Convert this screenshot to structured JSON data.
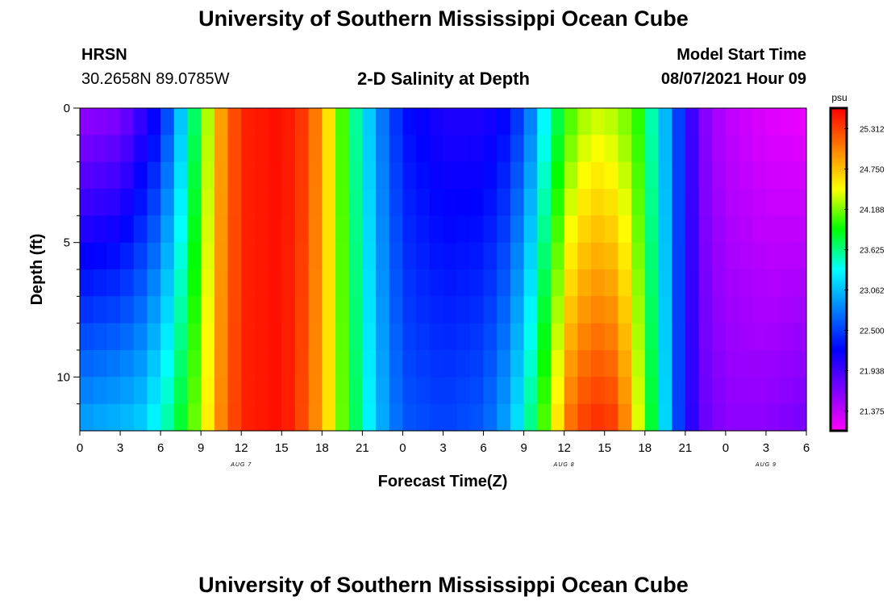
{
  "header": {
    "title": "University of Southern Mississippi Ocean Cube",
    "station": "HRSN",
    "coords": "30.2658N  89.0785W",
    "plot_title": "2-D Salinity at Depth",
    "start_label": "Model Start Time",
    "start_value": "08/07/2021 Hour 09"
  },
  "footer": {
    "title": "University of Southern Mississippi Ocean Cube"
  },
  "colors": {
    "colormap": [
      "#ff00ff",
      "#8000ff",
      "#0000ff",
      "#0080ff",
      "#00ffff",
      "#00ff00",
      "#ffff00",
      "#ff8000",
      "#ff0000"
    ]
  },
  "chart_data": {
    "type": "heatmap",
    "title": "2-D Salinity at Depth",
    "xlabel": "Forecast Time(Z)",
    "ylabel": "Depth (ft)",
    "x_hours_since_start": [
      0,
      3,
      6,
      9,
      12,
      15,
      18,
      21,
      24,
      27,
      30,
      33,
      36,
      39,
      42,
      45,
      48,
      51,
      54
    ],
    "x_tick_labels": [
      "0",
      "3",
      "6",
      "9",
      "12",
      "15",
      "18",
      "21",
      "0",
      "3",
      "6",
      "9",
      "12",
      "15",
      "18",
      "21",
      "0",
      "3",
      "6"
    ],
    "xlim_hours": [
      0,
      54
    ],
    "date_labels": [
      {
        "label": "AUG 7",
        "hour": 12
      },
      {
        "label": "AUG 8",
        "hour": 36
      },
      {
        "label": "AUG 9",
        "hour": 51
      }
    ],
    "ylim_ft": [
      0,
      12
    ],
    "y_ticks": [
      0,
      5,
      10
    ],
    "y_minor_ticks": [
      1,
      2,
      3,
      4,
      6,
      7,
      8,
      9,
      11
    ],
    "depth_levels_ft": [
      0.5,
      1.5,
      2.5,
      3.5,
      4.5,
      5.5,
      6.5,
      7.5,
      8.5,
      9.5,
      10.5,
      11.5
    ],
    "colorbar": {
      "unit": "psu",
      "range": [
        21.1,
        25.6
      ],
      "tick_labels": [
        "25.312",
        "24.750",
        "24.188",
        "23.625",
        "23.062",
        "22.500",
        "21.938",
        "21.375"
      ]
    },
    "profile_anchors": [
      {
        "hour": 0,
        "surface": 21.6,
        "bottom": 22.9
      },
      {
        "hour": 3,
        "surface": 21.7,
        "bottom": 23.0
      },
      {
        "hour": 4.5,
        "surface": 22.0,
        "bottom": 23.1
      },
      {
        "hour": 6,
        "surface": 22.3,
        "bottom": 23.4
      },
      {
        "hour": 7.5,
        "surface": 23.1,
        "bottom": 23.8
      },
      {
        "hour": 9,
        "surface": 24.0,
        "bottom": 24.3
      },
      {
        "hour": 10.5,
        "surface": 24.9,
        "bottom": 25.0
      },
      {
        "hour": 12,
        "surface": 25.45,
        "bottom": 25.45
      },
      {
        "hour": 15,
        "surface": 25.55,
        "bottom": 25.55
      },
      {
        "hour": 17,
        "surface": 25.3,
        "bottom": 25.2
      },
      {
        "hour": 18.5,
        "surface": 24.6,
        "bottom": 24.6
      },
      {
        "hour": 20,
        "surface": 23.8,
        "bottom": 23.9
      },
      {
        "hour": 22,
        "surface": 22.9,
        "bottom": 23.1
      },
      {
        "hour": 24,
        "surface": 22.3,
        "bottom": 22.6
      },
      {
        "hour": 27,
        "surface": 22.1,
        "bottom": 22.5
      },
      {
        "hour": 30,
        "surface": 22.1,
        "bottom": 22.6
      },
      {
        "hour": 32,
        "surface": 22.3,
        "bottom": 23.0
      },
      {
        "hour": 33.5,
        "surface": 22.8,
        "bottom": 23.6
      },
      {
        "hour": 35,
        "surface": 23.6,
        "bottom": 24.3
      },
      {
        "hour": 36.5,
        "surface": 24.1,
        "bottom": 25.1
      },
      {
        "hour": 38,
        "surface": 24.4,
        "bottom": 25.4
      },
      {
        "hour": 40,
        "surface": 24.3,
        "bottom": 25.3
      },
      {
        "hour": 41.5,
        "surface": 24.0,
        "bottom": 24.4
      },
      {
        "hour": 43,
        "surface": 23.3,
        "bottom": 23.5
      },
      {
        "hour": 44.5,
        "surface": 22.5,
        "bottom": 22.5
      },
      {
        "hour": 46,
        "surface": 21.7,
        "bottom": 21.8
      },
      {
        "hour": 48,
        "surface": 21.4,
        "bottom": 21.6
      },
      {
        "hour": 51,
        "surface": 21.25,
        "bottom": 21.6
      },
      {
        "hour": 54,
        "surface": 21.2,
        "bottom": 21.7
      }
    ]
  }
}
